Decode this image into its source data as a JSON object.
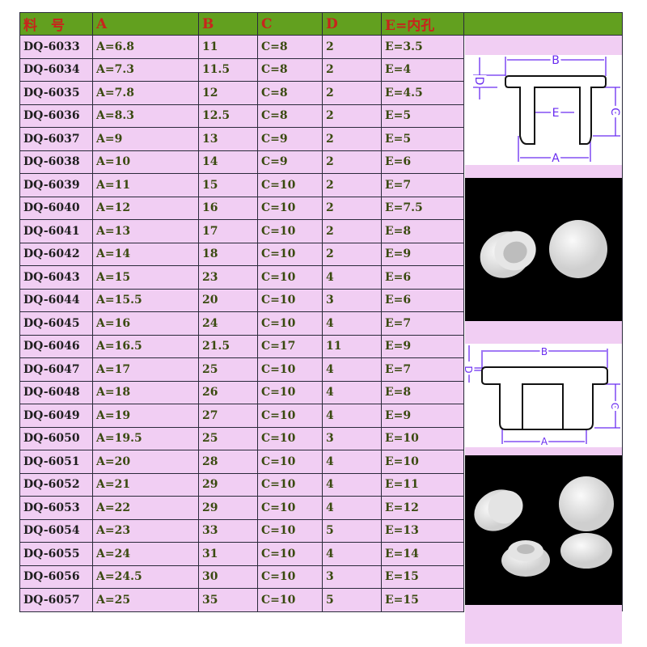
{
  "table": {
    "headers": [
      "料　号",
      "A",
      "B",
      "C",
      "D",
      "E=内孔"
    ],
    "rows": [
      [
        "DQ-6033",
        "A=6.8",
        "11",
        "C=8",
        "2",
        "E=3.5"
      ],
      [
        "DQ-6034",
        "A=7.3",
        "11.5",
        "C=8",
        "2",
        "E=4"
      ],
      [
        "DQ-6035",
        "A=7.8",
        "12",
        "C=8",
        "2",
        "E=4.5"
      ],
      [
        "DQ-6036",
        "A=8.3",
        "12.5",
        "C=8",
        "2",
        "E=5"
      ],
      [
        "DQ-6037",
        "A=9",
        "13",
        "C=9",
        "2",
        "E=5"
      ],
      [
        "DQ-6038",
        "A=10",
        "14",
        "C=9",
        "2",
        "E=6"
      ],
      [
        "DQ-6039",
        "A=11",
        "15",
        "C=10",
        "2",
        "E=7"
      ],
      [
        "DQ-6040",
        "A=12",
        "16",
        "C=10",
        "2",
        "E=7.5"
      ],
      [
        "DQ-6041",
        "A=13",
        "17",
        "C=10",
        "2",
        "E=8"
      ],
      [
        "DQ-6042",
        "A=14",
        "18",
        "C=10",
        "2",
        "E=9"
      ],
      [
        "DQ-6043",
        "A=15",
        "23",
        "C=10",
        "4",
        "E=6"
      ],
      [
        "DQ-6044",
        "A=15.5",
        "20",
        "C=10",
        "3",
        "E=6"
      ],
      [
        "DQ-6045",
        "A=16",
        "24",
        "C=10",
        "4",
        "E=7"
      ],
      [
        "DQ-6046",
        "A=16.5",
        "21.5",
        "C=17",
        "11",
        "E=9"
      ],
      [
        "DQ-6047",
        "A=17",
        "25",
        "C=10",
        "4",
        "E=7"
      ],
      [
        "DQ-6048",
        "A=18",
        "26",
        "C=10",
        "4",
        "E=8"
      ],
      [
        "DQ-6049",
        "A=19",
        "27",
        "C=10",
        "4",
        "E=9"
      ],
      [
        "DQ-6050",
        "A=19.5",
        "25",
        "C=10",
        "3",
        "E=10"
      ],
      [
        "DQ-6051",
        "A=20",
        "28",
        "C=10",
        "4",
        "E=10"
      ],
      [
        "DQ-6052",
        "A=21",
        "29",
        "C=10",
        "4",
        "E=11"
      ],
      [
        "DQ-6053",
        "A=22",
        "29",
        "C=10",
        "4",
        "E=12"
      ],
      [
        "DQ-6054",
        "A=23",
        "33",
        "C=10",
        "5",
        "E=13"
      ],
      [
        "DQ-6055",
        "A=24",
        "31",
        "C=10",
        "4",
        "E=14"
      ],
      [
        "DQ-6056",
        "A=24.5",
        "30",
        "C=10",
        "3",
        "E=15"
      ],
      [
        "DQ-6057",
        "A=25",
        "35",
        "C=10",
        "5",
        "E=15"
      ]
    ]
  },
  "diagram_labels": {
    "a": "A",
    "b": "B",
    "c": "C",
    "d": "D",
    "e": "E"
  },
  "colors": {
    "header_bg": "#62a01f",
    "header_text": "#c8241c",
    "row_bg": "#f1cef3",
    "dimension_lines": "#6a2cf0"
  }
}
